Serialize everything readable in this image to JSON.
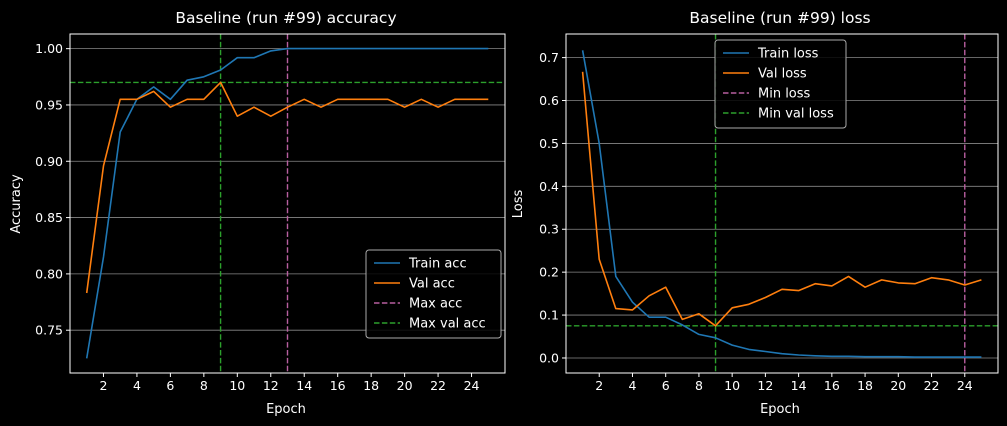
{
  "chart_data": [
    {
      "type": "line",
      "title": "Baseline (run #99) accuracy",
      "xlabel": "Epoch",
      "ylabel": "Accuracy",
      "xlim": [
        0,
        26
      ],
      "ylim": [
        0.712,
        1.013
      ],
      "xticks": [
        2,
        4,
        6,
        8,
        10,
        12,
        14,
        16,
        18,
        20,
        22,
        24
      ],
      "yticks": [
        0.75,
        0.8,
        0.85,
        0.9,
        0.95,
        1.0
      ],
      "ytick_labels": [
        "0.75",
        "0.80",
        "0.85",
        "0.90",
        "0.95",
        "1.00"
      ],
      "grid": "y",
      "legend_position": "lower-right",
      "x": [
        1,
        2,
        3,
        4,
        5,
        6,
        7,
        8,
        9,
        10,
        11,
        12,
        13,
        14,
        15,
        16,
        17,
        18,
        19,
        20,
        21,
        22,
        23,
        24,
        25
      ],
      "series": [
        {
          "name": "Train acc",
          "color": "#1f77b4",
          "values": [
            0.725,
            0.815,
            0.926,
            0.955,
            0.966,
            0.955,
            0.972,
            0.975,
            0.981,
            0.992,
            0.992,
            0.998,
            1.0,
            1.0,
            1.0,
            1.0,
            1.0,
            1.0,
            1.0,
            1.0,
            1.0,
            1.0,
            1.0,
            1.0,
            1.0
          ]
        },
        {
          "name": "Val acc",
          "color": "#ff7f0e",
          "values": [
            0.783,
            0.896,
            0.955,
            0.955,
            0.962,
            0.948,
            0.955,
            0.955,
            0.97,
            0.94,
            0.948,
            0.94,
            0.948,
            0.955,
            0.948,
            0.955,
            0.955,
            0.955,
            0.955,
            0.948,
            0.955,
            0.948,
            0.955,
            0.955,
            0.955
          ]
        }
      ],
      "reference_lines": [
        {
          "name": "Max acc",
          "orientation": "vertical",
          "value": 13,
          "color": "#b85fa0"
        },
        {
          "name": "Max val acc",
          "orientation": "vertical",
          "value": 9,
          "color": "#2ca02c"
        },
        {
          "name": "",
          "orientation": "horizontal",
          "value": 0.97,
          "color": "#2ca02c"
        }
      ],
      "legend": [
        {
          "label": "Train acc",
          "color": "#1f77b4",
          "style": "solid"
        },
        {
          "label": "Val acc",
          "color": "#ff7f0e",
          "style": "solid"
        },
        {
          "label": "Max acc",
          "color": "#b85fa0",
          "style": "dashed"
        },
        {
          "label": "Max val acc",
          "color": "#2ca02c",
          "style": "dashed"
        }
      ]
    },
    {
      "type": "line",
      "title": "Baseline (run #99) loss",
      "xlabel": "Epoch",
      "ylabel": "Loss",
      "xlim": [
        0,
        26
      ],
      "ylim": [
        -0.035,
        0.755
      ],
      "xticks": [
        2,
        4,
        6,
        8,
        10,
        12,
        14,
        16,
        18,
        20,
        22,
        24
      ],
      "yticks": [
        0.0,
        0.1,
        0.2,
        0.3,
        0.4,
        0.5,
        0.6,
        0.7
      ],
      "ytick_labels": [
        "0.0",
        "0.1",
        "0.2",
        "0.3",
        "0.4",
        "0.5",
        "0.6",
        "0.7"
      ],
      "grid": "y",
      "legend_position": "upper-center",
      "x": [
        1,
        2,
        3,
        4,
        5,
        6,
        7,
        8,
        9,
        10,
        11,
        12,
        13,
        14,
        15,
        16,
        17,
        18,
        19,
        20,
        21,
        22,
        23,
        24,
        25
      ],
      "series": [
        {
          "name": "Train loss",
          "color": "#1f77b4",
          "values": [
            0.717,
            0.5,
            0.19,
            0.13,
            0.095,
            0.095,
            0.077,
            0.055,
            0.047,
            0.03,
            0.02,
            0.015,
            0.01,
            0.007,
            0.005,
            0.004,
            0.004,
            0.003,
            0.003,
            0.003,
            0.002,
            0.002,
            0.002,
            0.002,
            0.002
          ]
        },
        {
          "name": "Val loss",
          "color": "#ff7f0e",
          "values": [
            0.667,
            0.23,
            0.115,
            0.112,
            0.145,
            0.165,
            0.09,
            0.103,
            0.075,
            0.117,
            0.125,
            0.141,
            0.16,
            0.157,
            0.173,
            0.168,
            0.19,
            0.165,
            0.182,
            0.175,
            0.173,
            0.187,
            0.182,
            0.17,
            0.182
          ]
        }
      ],
      "reference_lines": [
        {
          "name": "Min loss",
          "orientation": "vertical",
          "value": 24,
          "color": "#b85fa0"
        },
        {
          "name": "Min val loss",
          "orientation": "vertical",
          "value": 9,
          "color": "#2ca02c"
        },
        {
          "name": "",
          "orientation": "horizontal",
          "value": 0.075,
          "color": "#2ca02c"
        }
      ],
      "legend": [
        {
          "label": "Train loss",
          "color": "#1f77b4",
          "style": "solid"
        },
        {
          "label": "Val loss",
          "color": "#ff7f0e",
          "style": "solid"
        },
        {
          "label": "Min loss",
          "color": "#b85fa0",
          "style": "dashed"
        },
        {
          "label": "Min val loss",
          "color": "#2ca02c",
          "style": "dashed"
        }
      ]
    }
  ]
}
